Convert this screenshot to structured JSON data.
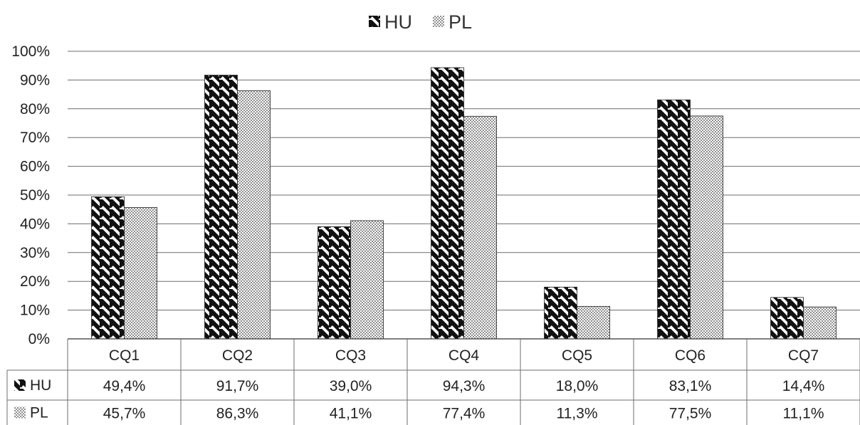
{
  "chart_data": {
    "type": "bar",
    "title": "",
    "xlabel": "",
    "ylabel": "",
    "ylim": [
      0,
      100
    ],
    "y_ticks": [
      "0%",
      "10%",
      "20%",
      "30%",
      "40%",
      "50%",
      "60%",
      "70%",
      "80%",
      "90%",
      "100%"
    ],
    "categories": [
      "CQ1",
      "CQ2",
      "CQ3",
      "CQ4",
      "CQ5",
      "CQ6",
      "CQ7"
    ],
    "grid": true,
    "legend_position": "top-center",
    "series": [
      {
        "name": "HU",
        "pattern": "diagonal-stripes",
        "color": "#1a1a1a",
        "values": [
          49.4,
          91.7,
          39.0,
          94.3,
          18.0,
          83.1,
          14.4
        ],
        "labels": [
          "49,4%",
          "91,7%",
          "39,0%",
          "94,3%",
          "18,0%",
          "83,1%",
          "14,4%"
        ]
      },
      {
        "name": "PL",
        "pattern": "crosshatch",
        "color": "#9a9a9a",
        "values": [
          45.7,
          86.3,
          41.1,
          77.4,
          11.3,
          77.5,
          11.1
        ],
        "labels": [
          "45,7%",
          "86,3%",
          "41,1%",
          "77,4%",
          "11,3%",
          "77,5%",
          "11,1%"
        ]
      }
    ]
  }
}
